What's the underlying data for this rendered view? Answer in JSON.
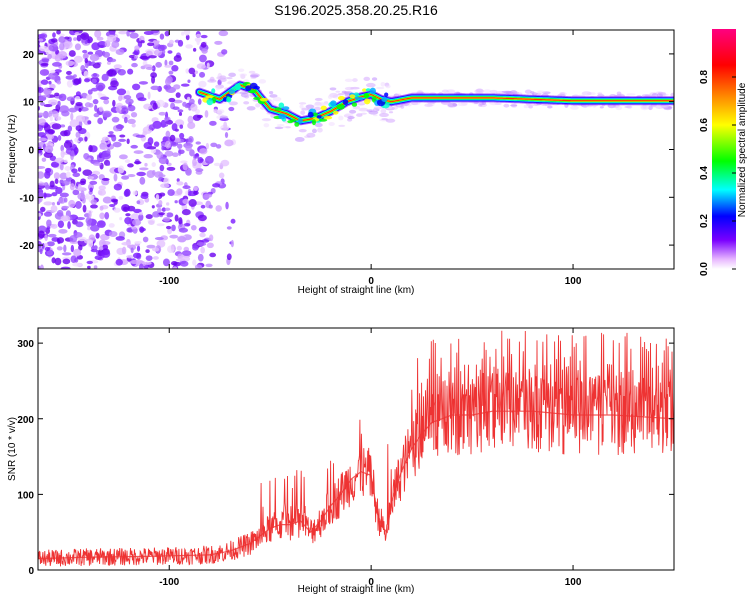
{
  "title": "S196.2025.358.20.25.R16",
  "chart_data": [
    {
      "type": "heatmap",
      "title": "S196.2025.358.20.25.R16",
      "xlabel": "Height of straight line (km)",
      "ylabel": "Frequency (Hz)",
      "xlim": [
        -165,
        150
      ],
      "ylim": [
        -25,
        25
      ],
      "x_ticks": [
        -100,
        0,
        100
      ],
      "y_ticks": [
        -20,
        -10,
        0,
        10,
        20
      ],
      "colorbar": {
        "label": "Normalized spectral amplitude",
        "range": [
          0,
          1
        ],
        "ticks": [
          "0.0",
          "0.2",
          "0.4",
          "0.6",
          "0.8"
        ],
        "tick_values": [
          0.0,
          0.2,
          0.4,
          0.6,
          0.8
        ],
        "colors": [
          "#ffffff",
          "#cc66ff",
          "#7a00ff",
          "#0000ff",
          "#00ffff",
          "#00ff00",
          "#ffff00",
          "#ff8800",
          "#ff0000",
          "#ff0080"
        ]
      },
      "ridge": {
        "description": "carrier frequency trace",
        "x": [
          -85,
          -75,
          -65,
          -58,
          -50,
          -42,
          -35,
          -28,
          -20,
          -12,
          -5,
          0,
          5,
          10,
          20,
          40,
          60,
          80,
          100,
          120,
          150
        ],
        "y": [
          12,
          10.5,
          13.5,
          12.5,
          8.5,
          7.5,
          6,
          6.5,
          8,
          10,
          11,
          11.5,
          10.5,
          10,
          10.8,
          10.8,
          10.8,
          10.5,
          10.2,
          10.2,
          10.2
        ]
      }
    },
    {
      "type": "line",
      "xlabel": "Height of straight line (km)",
      "ylabel": "SNR (10 * v/v)",
      "xlim": [
        -165,
        150
      ],
      "ylim": [
        0,
        320
      ],
      "x_ticks": [
        -100,
        0,
        100
      ],
      "y_ticks": [
        0,
        100,
        200,
        300
      ],
      "color": "#ee3333",
      "series": [
        {
          "name": "SNR",
          "x": [
            -165,
            -140,
            -110,
            -80,
            -70,
            -60,
            -55,
            -50,
            -45,
            -40,
            -35,
            -30,
            -25,
            -20,
            -15,
            -10,
            -5,
            0,
            3,
            6,
            8,
            10,
            15,
            20,
            25,
            30,
            40,
            50,
            60,
            80,
            100,
            120,
            150
          ],
          "y": [
            15,
            17,
            18,
            20,
            25,
            35,
            45,
            55,
            60,
            60,
            65,
            50,
            65,
            85,
            100,
            120,
            130,
            125,
            75,
            55,
            50,
            90,
            130,
            160,
            180,
            195,
            205,
            205,
            210,
            210,
            205,
            205,
            200
          ]
        }
      ]
    }
  ]
}
